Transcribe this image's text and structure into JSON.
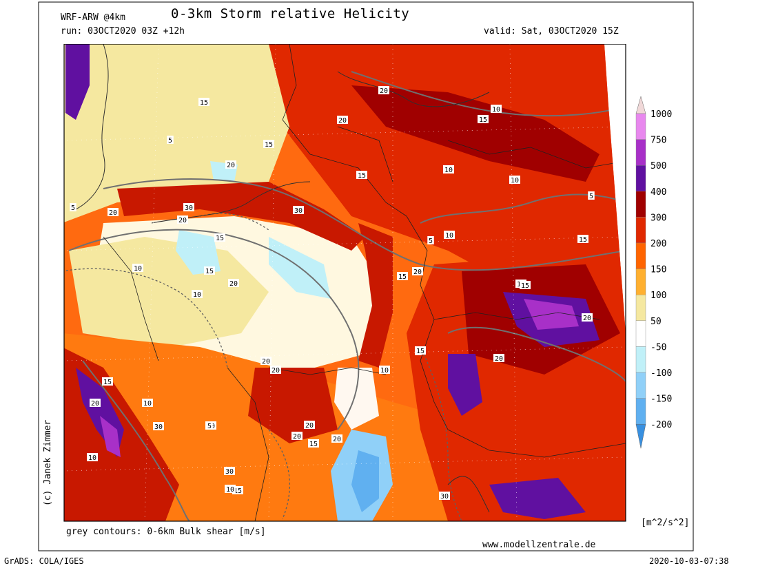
{
  "header": {
    "model": "WRF-ARW @4km",
    "title": "0-3km Storm relative Helicity",
    "run": "run: 03OCT2020 03Z +12h",
    "valid": "valid: Sat, 03OCT2020 15Z"
  },
  "legend": {
    "unit": "[m^2/s^2]",
    "levels": [
      {
        "label": "1000",
        "color": "#f0d8d8"
      },
      {
        "label": "750",
        "color": "#e888ee"
      },
      {
        "label": "500",
        "color": "#a830c8"
      },
      {
        "label": "400",
        "color": "#6010a0"
      },
      {
        "label": "300",
        "color": "#a00000"
      },
      {
        "label": "200",
        "color": "#e02800"
      },
      {
        "label": "150",
        "color": "#ff6400"
      },
      {
        "label": "100",
        "color": "#ffb030"
      },
      {
        "label": "50",
        "color": "#f5e8a0"
      },
      {
        "label": "-50",
        "color": "#ffffff"
      },
      {
        "label": "-100",
        "color": "#c0f0f8"
      },
      {
        "label": "-150",
        "color": "#90d0f8"
      },
      {
        "label": "-200",
        "color": "#60b0f0"
      }
    ],
    "bottom_color": "#3890e0"
  },
  "map": {
    "contour_labels": [
      "20",
      "15",
      "20",
      "10",
      "5",
      "15",
      "20",
      "15",
      "15",
      "10",
      "20",
      "30",
      "30",
      "20",
      "15",
      "5",
      "10",
      "5",
      "10",
      "15",
      "20",
      "10",
      "20",
      "15",
      "20",
      "15",
      "5",
      "10",
      "15",
      "20",
      "20",
      "15",
      "10",
      "20",
      "15",
      "5",
      "10",
      "20",
      "20",
      "30",
      "20",
      "30",
      "15",
      "20",
      "15",
      "20",
      "10",
      "15",
      "30",
      "5",
      "10"
    ]
  },
  "footer": {
    "contours_note": "grey contours: 0-6km Bulk shear [m/s]",
    "copyright": "(c) Janek Zimmer",
    "website": "www.modellzentrale.de",
    "software": "GrADS: COLA/IGES",
    "timestamp": "2020-10-03-07:38"
  }
}
